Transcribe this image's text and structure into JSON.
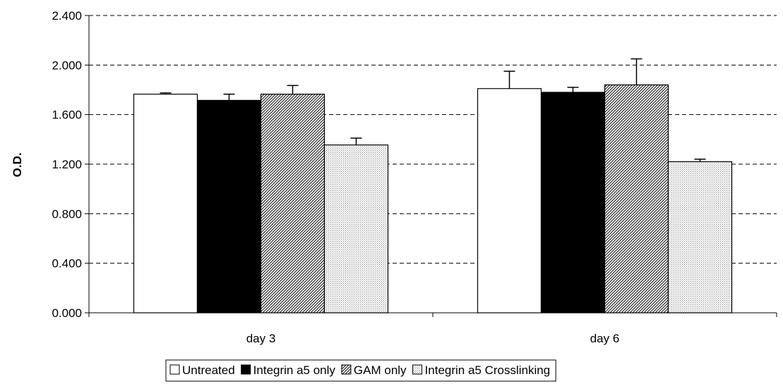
{
  "chart_data": {
    "type": "bar",
    "title": "",
    "xlabel": "",
    "ylabel": "O.D.",
    "ylim": [
      0,
      2.4
    ],
    "yticks": [
      "0.000",
      "0.400",
      "0.800",
      "1.200",
      "1.600",
      "2.000",
      "2.400"
    ],
    "grid": "horizontal dashed",
    "legend_position": "bottom",
    "categories": [
      "day 3",
      "day 6"
    ],
    "series": [
      {
        "name": "Untreated",
        "values": [
          1.765,
          1.81
        ],
        "errors": [
          0.01,
          0.14
        ],
        "pattern": "white"
      },
      {
        "name": "Integrin a5 only",
        "values": [
          1.715,
          1.78
        ],
        "errors": [
          0.05,
          0.04
        ],
        "pattern": "black"
      },
      {
        "name": "GAM only",
        "values": [
          1.765,
          1.84
        ],
        "errors": [
          0.07,
          0.21
        ],
        "pattern": "diagonal-hatch"
      },
      {
        "name": "Integrin a5 Crosslinking",
        "values": [
          1.355,
          1.22
        ],
        "errors": [
          0.055,
          0.02
        ],
        "pattern": "dots"
      }
    ]
  }
}
